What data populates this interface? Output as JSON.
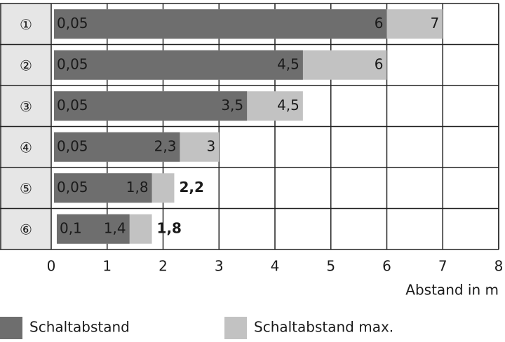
{
  "chart_data": {
    "type": "range-bar",
    "categories": [
      "①",
      "②",
      "③",
      "④",
      "⑤",
      "⑥"
    ],
    "starts": [
      0.05,
      0.05,
      0.05,
      0.05,
      0.05,
      0.1
    ],
    "start_labels": [
      "0,05",
      "0,05",
      "0,05",
      "0,05",
      "0,05",
      "0,1"
    ],
    "series": [
      {
        "name": "Schaltabstand",
        "color": "#6e6e6e",
        "values": [
          6,
          4.5,
          3.5,
          2.3,
          1.8,
          1.4
        ],
        "value_labels": [
          "6",
          "4,5",
          "3,5",
          "2,3",
          "1,8",
          "1,4"
        ]
      },
      {
        "name": "Schaltabstand max.",
        "color": "#c2c2c2",
        "values": [
          7,
          6,
          4.5,
          3,
          2.2,
          1.8
        ],
        "value_labels": [
          "7",
          "6",
          "4,5",
          "3",
          "2,2",
          "1,8"
        ]
      }
    ],
    "xlim": [
      0,
      8
    ],
    "xticks": [
      0,
      1,
      2,
      3,
      4,
      5,
      6,
      7,
      8
    ],
    "xlabel": "Abstand in m",
    "grid": true
  }
}
